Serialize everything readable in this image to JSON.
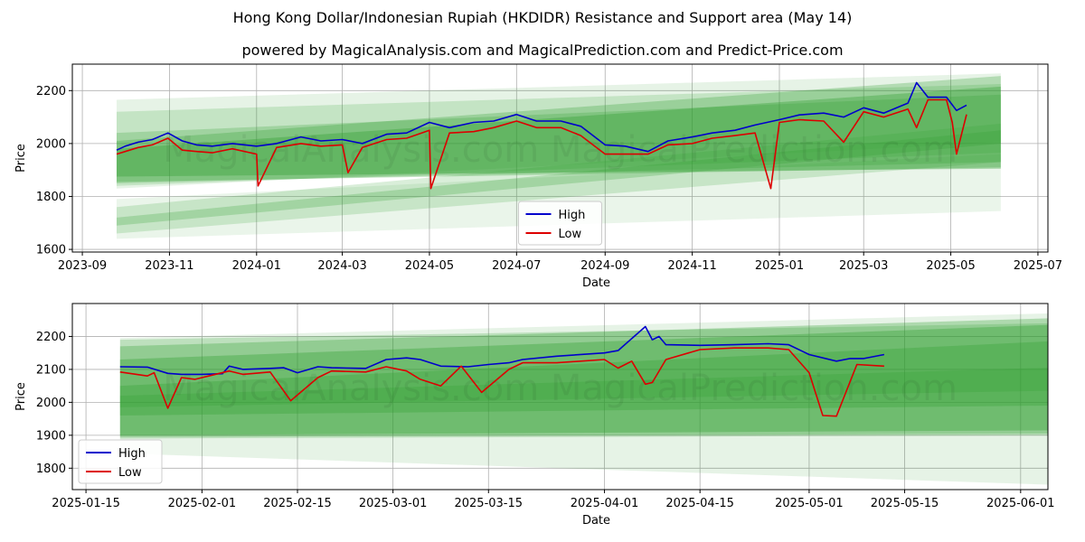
{
  "figure": {
    "title": "Hong Kong Dollar/Indonesian Rupiah (HKDIDR) Resistance and Support area (May 14)",
    "subtitle": "powered by MagicalAnalysis.com and MagicalPrediction.com and Predict-Price.com",
    "watermark": "MagicalAnalysis.com   MagicalPrediction.com"
  },
  "colors": {
    "high": "#0000cc",
    "low": "#dd0000",
    "band": "#2e9e2e",
    "grid": "#b0b0b0"
  },
  "chart_data": [
    {
      "type": "line",
      "xlabel": "Date",
      "ylabel": "Price",
      "x_range": [
        "2023-08-25",
        "2025-07-08"
      ],
      "ylim": [
        1590,
        2300
      ],
      "yticks": [
        1600,
        1800,
        2000,
        2200
      ],
      "xticks": [
        "2023-09",
        "2023-11",
        "2024-01",
        "2024-03",
        "2024-05",
        "2024-07",
        "2024-09",
        "2024-11",
        "2025-01",
        "2025-03",
        "2025-05",
        "2025-07"
      ],
      "grid": true,
      "legend": "bottom-center",
      "series": [
        {
          "name": "High",
          "color": "#0000cc",
          "x": [
            "2023-09-25",
            "2023-10-01",
            "2023-10-10",
            "2023-10-20",
            "2023-10-31",
            "2023-11-10",
            "2023-11-20",
            "2023-12-01",
            "2023-12-15",
            "2024-01-01",
            "2024-01-15",
            "2024-02-01",
            "2024-02-15",
            "2024-03-01",
            "2024-03-15",
            "2024-04-01",
            "2024-04-15",
            "2024-05-01",
            "2024-05-15",
            "2024-06-01",
            "2024-06-15",
            "2024-07-01",
            "2024-07-15",
            "2024-08-01",
            "2024-08-15",
            "2024-09-01",
            "2024-09-15",
            "2024-10-01",
            "2024-10-15",
            "2024-11-01",
            "2024-11-15",
            "2024-12-01",
            "2024-12-15",
            "2025-01-01",
            "2025-01-15",
            "2025-02-01",
            "2025-02-15",
            "2025-03-01",
            "2025-03-15",
            "2025-04-01",
            "2025-04-07",
            "2025-04-15",
            "2025-04-28",
            "2025-05-05",
            "2025-05-12"
          ],
          "y": [
            1975,
            1990,
            2005,
            2015,
            2040,
            2010,
            1995,
            1990,
            2000,
            1990,
            2000,
            2025,
            2010,
            2015,
            2000,
            2035,
            2040,
            2080,
            2060,
            2080,
            2085,
            2110,
            2085,
            2085,
            2065,
            1995,
            1990,
            1970,
            2010,
            2025,
            2040,
            2050,
            2070,
            2090,
            2108,
            2115,
            2100,
            2135,
            2115,
            2153,
            2230,
            2175,
            2175,
            2125,
            2145
          ]
        },
        {
          "name": "Low",
          "color": "#dd0000",
          "x": [
            "2023-09-25",
            "2023-10-01",
            "2023-10-10",
            "2023-10-20",
            "2023-10-31",
            "2023-11-10",
            "2023-11-20",
            "2023-12-01",
            "2023-12-15",
            "2024-01-01",
            "2024-01-02",
            "2024-01-15",
            "2024-02-01",
            "2024-02-15",
            "2024-03-01",
            "2024-03-05",
            "2024-03-15",
            "2024-04-01",
            "2024-04-15",
            "2024-05-01",
            "2024-05-02",
            "2024-05-15",
            "2024-06-01",
            "2024-06-15",
            "2024-07-01",
            "2024-07-15",
            "2024-08-01",
            "2024-08-15",
            "2024-09-01",
            "2024-09-15",
            "2024-10-01",
            "2024-10-15",
            "2024-11-01",
            "2024-11-15",
            "2024-12-01",
            "2024-12-15",
            "2024-12-26",
            "2025-01-01",
            "2025-01-15",
            "2025-02-01",
            "2025-02-15",
            "2025-03-01",
            "2025-03-15",
            "2025-04-01",
            "2025-04-07",
            "2025-04-15",
            "2025-04-28",
            "2025-05-02",
            "2025-05-05",
            "2025-05-12"
          ],
          "y": [
            1960,
            1970,
            1985,
            1995,
            2020,
            1975,
            1970,
            1965,
            1980,
            1960,
            1840,
            1985,
            2000,
            1990,
            1995,
            1890,
            1985,
            2015,
            2020,
            2050,
            1830,
            2040,
            2045,
            2060,
            2085,
            2060,
            2060,
            2030,
            1960,
            1960,
            1960,
            1995,
            2000,
            2020,
            2030,
            2040,
            1830,
            2080,
            2090,
            2085,
            2005,
            2120,
            2100,
            2130,
            2060,
            2165,
            2165,
            2080,
            1960,
            2110
          ]
        }
      ]
    },
    {
      "type": "line",
      "xlabel": "Date",
      "ylabel": "Price",
      "x_range": [
        "2025-01-13",
        "2025-06-05"
      ],
      "ylim": [
        1735,
        2300
      ],
      "yticks": [
        1800,
        1900,
        2000,
        2100,
        2200
      ],
      "xticks": [
        "2025-01-15",
        "2025-02-01",
        "2025-02-15",
        "2025-03-01",
        "2025-03-15",
        "2025-04-01",
        "2025-04-15",
        "2025-05-01",
        "2025-05-15",
        "2025-06-01"
      ],
      "grid": true,
      "legend": "bottom-left",
      "series": [
        {
          "name": "High",
          "color": "#0000cc",
          "x": [
            "2025-01-20",
            "2025-01-24",
            "2025-01-27",
            "2025-01-29",
            "2025-02-01",
            "2025-02-04",
            "2025-02-05",
            "2025-02-07",
            "2025-02-11",
            "2025-02-13",
            "2025-02-15",
            "2025-02-18",
            "2025-02-20",
            "2025-02-25",
            "2025-02-28",
            "2025-03-03",
            "2025-03-05",
            "2025-03-08",
            "2025-03-12",
            "2025-03-15",
            "2025-03-18",
            "2025-03-20",
            "2025-03-25",
            "2025-04-01",
            "2025-04-03",
            "2025-04-07",
            "2025-04-08",
            "2025-04-09",
            "2025-04-10",
            "2025-04-15",
            "2025-04-20",
            "2025-04-25",
            "2025-04-28",
            "2025-05-01",
            "2025-05-05",
            "2025-05-07",
            "2025-05-09",
            "2025-05-12"
          ],
          "y": [
            2108,
            2107,
            2088,
            2085,
            2085,
            2087,
            2110,
            2100,
            2103,
            2105,
            2090,
            2108,
            2105,
            2103,
            2130,
            2135,
            2130,
            2110,
            2108,
            2115,
            2120,
            2130,
            2140,
            2150,
            2157,
            2230,
            2190,
            2200,
            2175,
            2173,
            2175,
            2178,
            2175,
            2145,
            2125,
            2133,
            2133,
            2145
          ]
        },
        {
          "name": "Low",
          "color": "#dd0000",
          "x": [
            "2025-01-20",
            "2025-01-24",
            "2025-01-25",
            "2025-01-27",
            "2025-01-29",
            "2025-01-31",
            "2025-02-02",
            "2025-02-05",
            "2025-02-07",
            "2025-02-11",
            "2025-02-14",
            "2025-02-18",
            "2025-02-20",
            "2025-02-25",
            "2025-02-28",
            "2025-03-03",
            "2025-03-05",
            "2025-03-08",
            "2025-03-11",
            "2025-03-14",
            "2025-03-18",
            "2025-03-20",
            "2025-03-25",
            "2025-04-01",
            "2025-04-03",
            "2025-04-05",
            "2025-04-07",
            "2025-04-08",
            "2025-04-10",
            "2025-04-15",
            "2025-04-20",
            "2025-04-25",
            "2025-04-28",
            "2025-05-01",
            "2025-05-03",
            "2025-05-05",
            "2025-05-08",
            "2025-05-12"
          ],
          "y": [
            2092,
            2080,
            2090,
            1982,
            2075,
            2070,
            2080,
            2095,
            2085,
            2092,
            2005,
            2075,
            2095,
            2092,
            2108,
            2095,
            2070,
            2050,
            2110,
            2030,
            2100,
            2120,
            2120,
            2130,
            2104,
            2125,
            2055,
            2060,
            2130,
            2160,
            2165,
            2165,
            2160,
            2090,
            1960,
            1958,
            2115,
            2110
          ]
        }
      ]
    }
  ]
}
